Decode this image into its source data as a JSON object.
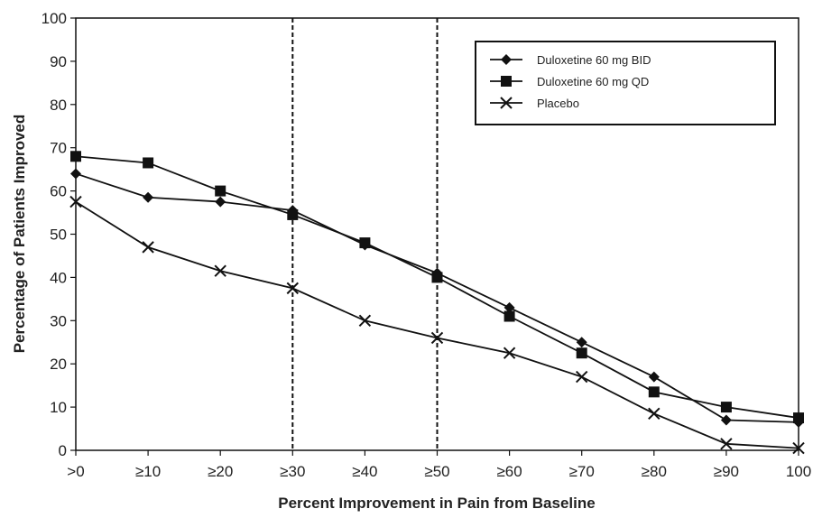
{
  "chart_data": {
    "type": "line",
    "title": "",
    "xlabel": "Percent Improvement in Pain from Baseline",
    "ylabel": "Percentage of Patients Improved",
    "categories": [
      ">0",
      "≥10",
      "≥20",
      "≥30",
      "≥40",
      "≥50",
      "≥60",
      "≥70",
      "≥80",
      "≥90",
      "100"
    ],
    "ylim": [
      0,
      100
    ],
    "yticks": [
      0,
      10,
      20,
      30,
      40,
      50,
      60,
      70,
      80,
      90,
      100
    ],
    "grid": false,
    "legend_position": "top-right",
    "reference_lines_at": [
      "≥30",
      "≥50"
    ],
    "series": [
      {
        "name": "Duloxetine 60 mg BID",
        "marker": "diamond",
        "color": "#111111",
        "values": [
          64,
          58.5,
          57.5,
          55.5,
          47.5,
          41,
          33,
          25,
          17,
          7,
          6.5
        ]
      },
      {
        "name": "Duloxetine 60 mg QD",
        "marker": "square",
        "color": "#111111",
        "values": [
          68,
          66.5,
          60,
          54.5,
          48,
          40,
          31,
          22.5,
          13.5,
          10,
          7.5
        ]
      },
      {
        "name": "Placebo",
        "marker": "x",
        "color": "#111111",
        "values": [
          57.5,
          47,
          41.5,
          37.5,
          30,
          26,
          22.5,
          17,
          8.5,
          1.5,
          0.5
        ]
      }
    ]
  }
}
